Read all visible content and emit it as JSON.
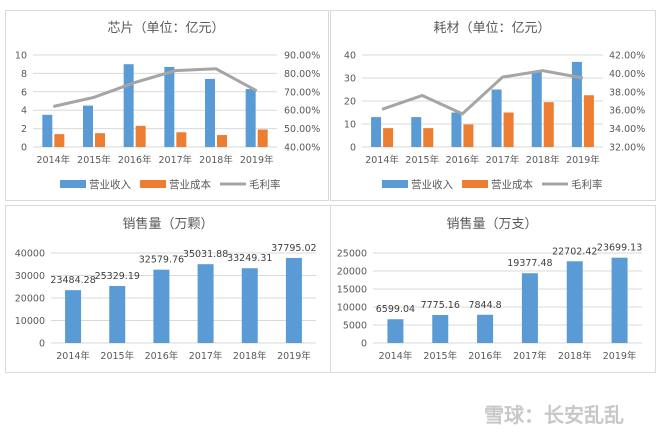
{
  "colors": {
    "revenue": "#5b9bd5",
    "cost": "#ed7d31",
    "margin": "#a5a5a5",
    "grid": "#d9d9d9",
    "text": "#595959"
  },
  "watermark": "雪球：长安乱乱",
  "chart_data": [
    {
      "type": "bar+line",
      "title": "芯片（单位：亿元）",
      "categories": [
        "2014年",
        "2015年",
        "2016年",
        "2017年",
        "2018年",
        "2019年"
      ],
      "ylim": [
        0,
        10
      ],
      "yticks": [
        "0",
        "2",
        "4",
        "6",
        "8",
        "10"
      ],
      "y2lim": [
        40,
        90
      ],
      "y2ticks": [
        "40.00%",
        "50.00%",
        "60.00%",
        "70.00%",
        "80.00%",
        "90.00%"
      ],
      "grid": true,
      "legend": "bottom",
      "series": [
        {
          "name": "营业收入",
          "kind": "bar",
          "axis": "left",
          "values": [
            3.5,
            4.5,
            9.0,
            8.7,
            7.4,
            6.3
          ]
        },
        {
          "name": "营业成本",
          "kind": "bar",
          "axis": "left",
          "values": [
            1.4,
            1.5,
            2.3,
            1.6,
            1.3,
            1.9
          ]
        },
        {
          "name": "毛利率",
          "kind": "line",
          "axis": "right",
          "values": [
            62.0,
            67.0,
            75.0,
            81.5,
            82.5,
            70.5
          ]
        }
      ]
    },
    {
      "type": "bar+line",
      "title": "耗材（单位：亿元）",
      "categories": [
        "2014年",
        "2015年",
        "2016年",
        "2017年",
        "2018年",
        "2019年"
      ],
      "ylim": [
        0,
        40
      ],
      "yticks": [
        "0",
        "10",
        "20",
        "30",
        "40"
      ],
      "y2lim": [
        32,
        42
      ],
      "y2ticks": [
        "32.00%",
        "34.00%",
        "36.00%",
        "38.00%",
        "40.00%",
        "42.00%"
      ],
      "grid": true,
      "legend": "bottom",
      "series": [
        {
          "name": "营业收入",
          "kind": "bar",
          "axis": "left",
          "values": [
            13.0,
            13.0,
            15.0,
            25.0,
            33.0,
            37.0
          ]
        },
        {
          "name": "营业成本",
          "kind": "bar",
          "axis": "left",
          "values": [
            8.2,
            8.2,
            9.8,
            15.0,
            19.5,
            22.5
          ]
        },
        {
          "name": "毛利率",
          "kind": "line",
          "axis": "right",
          "values": [
            36.1,
            37.6,
            35.6,
            39.6,
            40.3,
            39.5
          ]
        }
      ]
    },
    {
      "type": "bar",
      "title": "销售量（万颗）",
      "categories": [
        "2014年",
        "2015年",
        "2016年",
        "2017年",
        "2018年",
        "2019年"
      ],
      "ylim": [
        0,
        40000
      ],
      "yticks": [
        "0",
        "10000",
        "20000",
        "30000",
        "40000"
      ],
      "grid": true,
      "values": [
        23484.28,
        25329.19,
        32579.76,
        35031.88,
        33249.31,
        37795.02
      ],
      "labels": [
        "23484.28",
        "25329.19",
        "32579.76",
        "35031.88",
        "33249.31",
        "37795.02"
      ]
    },
    {
      "type": "bar",
      "title": "销售量（万支）",
      "categories": [
        "2014年",
        "2015年",
        "2016年",
        "2017年",
        "2018年",
        "2019年"
      ],
      "ylim": [
        0,
        25000
      ],
      "yticks": [
        "0",
        "5000",
        "10000",
        "15000",
        "20000",
        "25000"
      ],
      "grid": true,
      "values": [
        6599.04,
        7775.16,
        7844.8,
        19377.48,
        22702.42,
        23699.13
      ],
      "labels": [
        "6599.04",
        "7775.16",
        "7844.8",
        "19377.48",
        "22702.42",
        "23699.13"
      ]
    }
  ]
}
